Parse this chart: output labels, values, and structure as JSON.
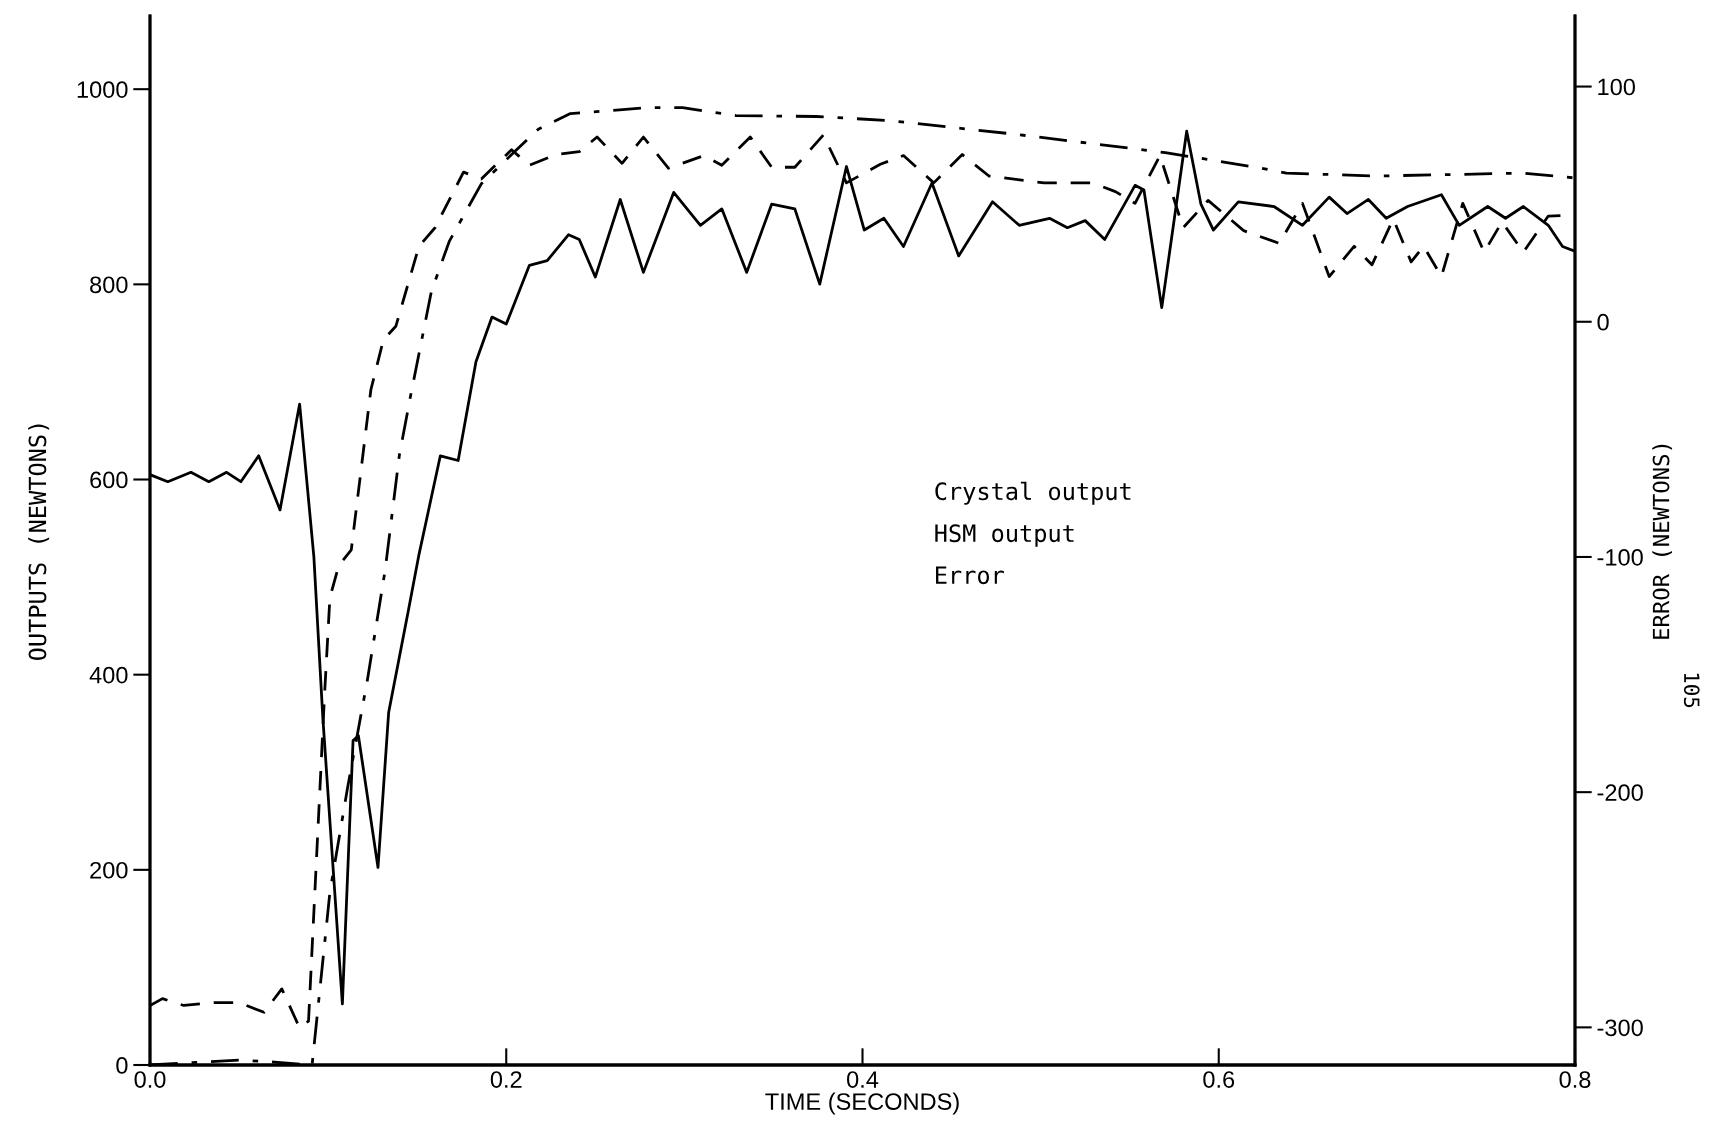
{
  "chart_data": {
    "type": "line",
    "xlabel": "TIME (SECONDS)",
    "ylabel": "OUTPUTS (NEWTONS)",
    "y2label": "ERROR (NEWTONS)",
    "annotations": [
      "Crystal output",
      "HSM output",
      "Error",
      "105"
    ],
    "xlim": [
      0,
      0.8
    ],
    "xticks": [
      {
        "value": 0,
        "label": "0.0"
      },
      0.2,
      0.4,
      0.6,
      0.8
    ],
    "ylim": [
      0,
      1075
    ],
    "yticks": [
      0,
      200,
      400,
      600,
      800,
      1000
    ],
    "y2lim": [
      -316,
      130
    ],
    "y2ticks": [
      -300,
      -200,
      -100,
      0,
      100
    ],
    "grid": false,
    "legend": false,
    "marker": "none",
    "series": [
      {
        "color": "#000000",
        "line_style": "solid",
        "axis": "y2",
        "x": [
          0,
          0.01,
          0.023,
          0.033,
          0.043,
          0.051,
          0.061,
          0.073,
          0.084,
          0.092,
          0.097,
          0.108,
          0.114,
          0.117,
          0.128,
          0.134,
          0.145,
          0.151,
          0.163,
          0.173,
          0.183,
          0.192,
          0.2,
          0.213,
          0.223,
          0.235,
          0.241,
          0.25,
          0.264,
          0.277,
          0.294,
          0.309,
          0.321,
          0.335,
          0.349,
          0.362,
          0.376,
          0.391,
          0.401,
          0.412,
          0.423,
          0.439,
          0.454,
          0.473,
          0.488,
          0.505,
          0.515,
          0.525,
          0.536,
          0.553,
          0.558,
          0.568,
          0.582,
          0.59,
          0.597,
          0.611,
          0.631,
          0.647,
          0.662,
          0.672,
          0.684,
          0.694,
          0.706,
          0.725,
          0.735,
          0.751,
          0.761,
          0.771,
          0.785,
          0.793,
          0.8
        ],
        "values": [
          -65,
          -68,
          -64,
          -68,
          -64,
          -68,
          -57,
          -80,
          -35,
          -100,
          -168,
          -290,
          -178,
          -176,
          -232,
          -166,
          -123,
          -99,
          -57,
          -59,
          -17,
          2,
          -1,
          24,
          26,
          37,
          35,
          19,
          52,
          21,
          55,
          41,
          48,
          21,
          50,
          48,
          16,
          66,
          39,
          44,
          32,
          59,
          28,
          51,
          41,
          44,
          40,
          43,
          35,
          58,
          56,
          6,
          81,
          50,
          39,
          51,
          49,
          41,
          53,
          46,
          52,
          44,
          49,
          54,
          41,
          49,
          44,
          49,
          41,
          32,
          30
        ]
      },
      {
        "color": "#000000",
        "line_style": "dashed",
        "x": [
          0,
          0.007,
          0.019,
          0.036,
          0.05,
          0.064,
          0.074,
          0.084,
          0.089,
          0.098,
          0.101,
          0.106,
          0.113,
          0.124,
          0.131,
          0.138,
          0.151,
          0.16,
          0.176,
          0.186,
          0.203,
          0.213,
          0.228,
          0.241,
          0.251,
          0.265,
          0.277,
          0.291,
          0.311,
          0.321,
          0.337,
          0.349,
          0.362,
          0.378,
          0.391,
          0.41,
          0.423,
          0.44,
          0.456,
          0.471,
          0.502,
          0.529,
          0.542,
          0.553,
          0.567,
          0.58,
          0.594,
          0.614,
          0.634,
          0.647,
          0.662,
          0.676,
          0.686,
          0.698,
          0.708,
          0.715,
          0.725,
          0.737,
          0.749,
          0.759,
          0.771,
          0.785,
          0.8
        ],
        "values": [
          61,
          68,
          61,
          64,
          64,
          54,
          78,
          38,
          45,
          380,
          479,
          512,
          528,
          692,
          743,
          757,
          839,
          858,
          915,
          908,
          938,
          922,
          933,
          936,
          951,
          924,
          951,
          919,
          932,
          922,
          951,
          920,
          920,
          953,
          904,
          923,
          932,
          904,
          933,
          911,
          904,
          904,
          895,
          883,
          932,
          858,
          886,
          855,
          842,
          883,
          808,
          839,
          820,
          867,
          823,
          839,
          808,
          883,
          833,
          864,
          833,
          870,
          871
        ]
      },
      {
        "color": "#000000",
        "line_style": "dashdot",
        "x": [
          0,
          0.05,
          0.07,
          0.091,
          0.101,
          0.111,
          0.122,
          0.132,
          0.14,
          0.146,
          0.158,
          0.168,
          0.186,
          0.203,
          0.218,
          0.236,
          0.279,
          0.299,
          0.329,
          0.374,
          0.414,
          0.485,
          0.57,
          0.621,
          0.638,
          0.689,
          0.771,
          0.8
        ],
        "values": [
          0,
          5,
          3,
          0,
          177,
          285,
          394,
          507,
          625,
          683,
          793,
          844,
          903,
          933,
          959,
          975,
          981,
          981,
          973,
          972,
          968,
          954,
          935,
          920,
          914,
          911,
          914,
          909
        ]
      }
    ]
  }
}
